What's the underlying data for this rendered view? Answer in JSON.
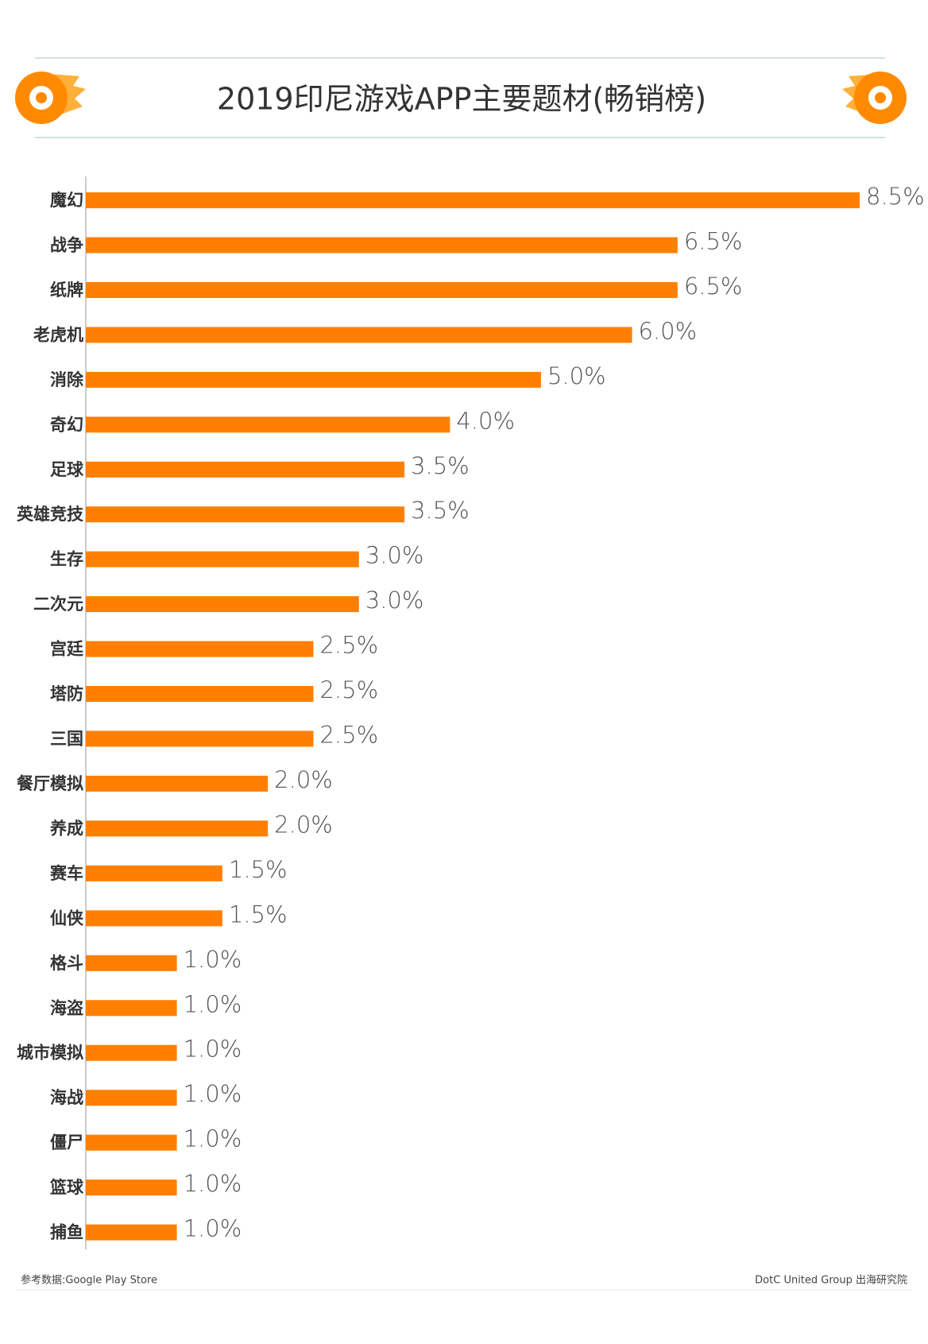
{
  "chart_data": {
    "type": "bar",
    "orientation": "horizontal",
    "title": "2019印尼游戏APP主要题材(畅销榜)",
    "categories": [
      "魔幻",
      "战争",
      "纸牌",
      "老虎机",
      "消除",
      "奇幻",
      "足球",
      "英雄竞技",
      "生存",
      "二次元",
      "宫廷",
      "塔防",
      "三国",
      "餐厅模拟",
      "养成",
      "赛车",
      "仙侠",
      "格斗",
      "海盗",
      "城市模拟",
      "海战",
      "僵尸",
      "篮球",
      "捕鱼"
    ],
    "values": [
      8.5,
      6.5,
      6.5,
      6.0,
      5.0,
      4.0,
      3.5,
      3.5,
      3.0,
      3.0,
      2.5,
      2.5,
      2.5,
      2.0,
      2.0,
      1.5,
      1.5,
      1.0,
      1.0,
      1.0,
      1.0,
      1.0,
      1.0,
      1.0
    ],
    "value_labels": [
      "8.5%",
      "6.5%",
      "6.5%",
      "6.0%",
      "5.0%",
      "4.0%",
      "3.5%",
      "3.5%",
      "3.0%",
      "3.0%",
      "2.5%",
      "2.5%",
      "2.5%",
      "2.0%",
      "2.0%",
      "1.5%",
      "1.5%",
      "1.0%",
      "1.0%",
      "1.0%",
      "1.0%",
      "1.0%",
      "1.0%",
      "1.0%"
    ],
    "color": "#ff7f00",
    "source": "参考数据:Google Play Store",
    "credit": "DotC United Group 出海研究院"
  }
}
